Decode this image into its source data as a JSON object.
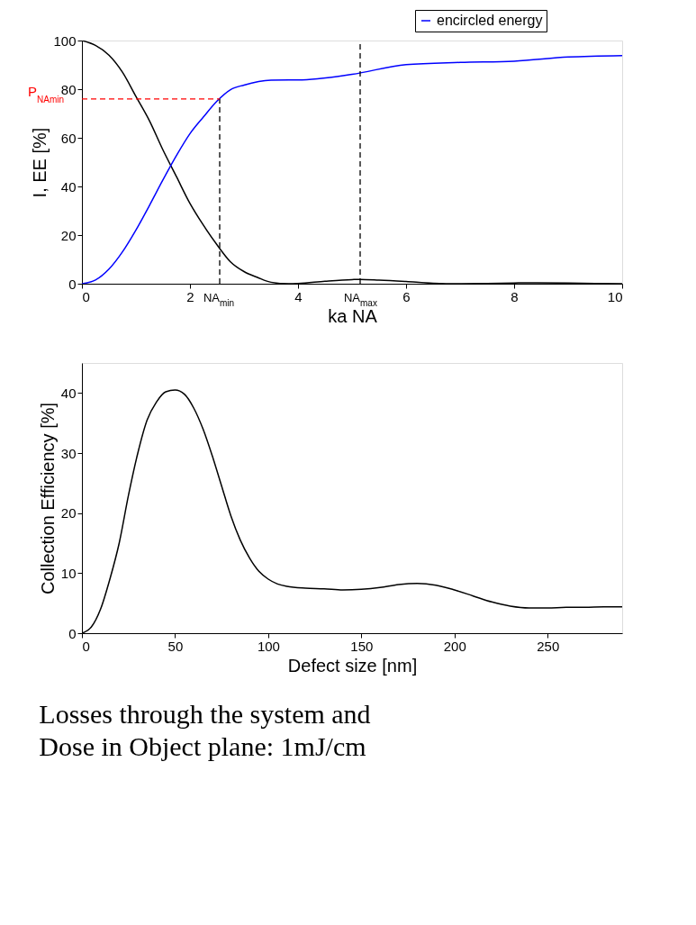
{
  "chart_data": [
    {
      "type": "line",
      "ylabel": "I, EE [%]",
      "xlabel": "ka NA",
      "xlim": [
        0,
        10
      ],
      "xticks": [
        0,
        2,
        4,
        6,
        8,
        10
      ],
      "ylim": [
        0,
        100
      ],
      "yticks": [
        0,
        20,
        40,
        60,
        80,
        100
      ],
      "legend": "top right",
      "grid": false,
      "line_style": "solid",
      "series": [
        {
          "color": "#000000",
          "x": [
            0,
            0.25,
            0.5,
            0.75,
            1,
            1.25,
            1.5,
            1.75,
            2,
            2.25,
            2.5,
            2.75,
            3,
            3.25,
            3.5,
            3.83,
            4,
            4.5,
            5,
            5.14,
            5.5,
            6,
            6.5,
            7.02,
            7.5,
            8,
            8.42,
            9,
            9.5,
            10
          ],
          "values": [
            100,
            98,
            94,
            87,
            77,
            67,
            55,
            44,
            33,
            24,
            16,
            9,
            5,
            2.6,
            0.6,
            0,
            0.1,
            1,
            1.7,
            1.8,
            1.5,
            0.9,
            0.2,
            0,
            0.1,
            0.3,
            0.4,
            0.3,
            0.1,
            0
          ]
        },
        {
          "name": "encircled energy",
          "color": "#0000ff",
          "x": [
            0,
            0.25,
            0.5,
            0.75,
            1,
            1.25,
            1.5,
            1.75,
            2,
            2.25,
            2.5,
            2.75,
            3,
            3.5,
            3.83,
            4,
            5,
            6,
            7,
            8,
            9,
            10
          ],
          "values": [
            0,
            1.5,
            6,
            13.1,
            22.1,
            32.2,
            42.7,
            52.7,
            61.7,
            68.6,
            75.1,
            79.8,
            81.7,
            83.7,
            83.8,
            83.8,
            86.1,
            90.1,
            91.0,
            91.5,
            93.2,
            93.8
          ]
        }
      ],
      "ref_lines": [
        {
          "axis": "x",
          "value": 2.55,
          "label": "NA$_{min}$",
          "color": "#000000",
          "line_style": "dashed"
        },
        {
          "axis": "x",
          "value": 5.15,
          "label": "NA$_{max}$",
          "color": "#000000",
          "line_style": "dashed"
        },
        {
          "axis": "y",
          "value": 76,
          "label": "P$_{NAmin}$",
          "color": "#ff0000",
          "line_style": "dashed"
        }
      ]
    },
    {
      "type": "line",
      "ylabel": "Collection Efficiency [%]",
      "xlabel": "Defect size [nm]",
      "xlim": [
        0,
        290
      ],
      "xticks": [
        0,
        50,
        100,
        150,
        200,
        250
      ],
      "ylim": [
        0,
        45
      ],
      "yticks": [
        0,
        10,
        20,
        30,
        40
      ],
      "grid": false,
      "line_style": "solid",
      "series": [
        {
          "color": "#000000",
          "x": [
            0,
            5,
            10,
            15,
            20,
            25,
            30,
            35,
            40,
            45,
            50,
            55,
            60,
            65,
            70,
            75,
            80,
            85,
            90,
            95,
            100,
            105,
            110,
            120,
            130,
            140,
            150,
            160,
            170,
            180,
            190,
            200,
            210,
            220,
            230,
            240,
            250,
            260,
            270,
            280,
            290
          ],
          "values": [
            0,
            1,
            4,
            9,
            15,
            23,
            30,
            35.5,
            38.5,
            40.2,
            40.5,
            39.8,
            37.5,
            34,
            29.5,
            24.5,
            19.5,
            15.5,
            12.5,
            10.3,
            9,
            8.2,
            7.8,
            7.5,
            7.4,
            7.2,
            7.3,
            7.6,
            8.1,
            8.3,
            8,
            7.2,
            6.2,
            5.2,
            4.5,
            4.2,
            4.2,
            4.3,
            4.3,
            4.4,
            4.4
          ]
        }
      ],
      "annotations": [
        "Losses through the system and",
        "Dose in Object plane: 1mJ/cm"
      ]
    }
  ]
}
